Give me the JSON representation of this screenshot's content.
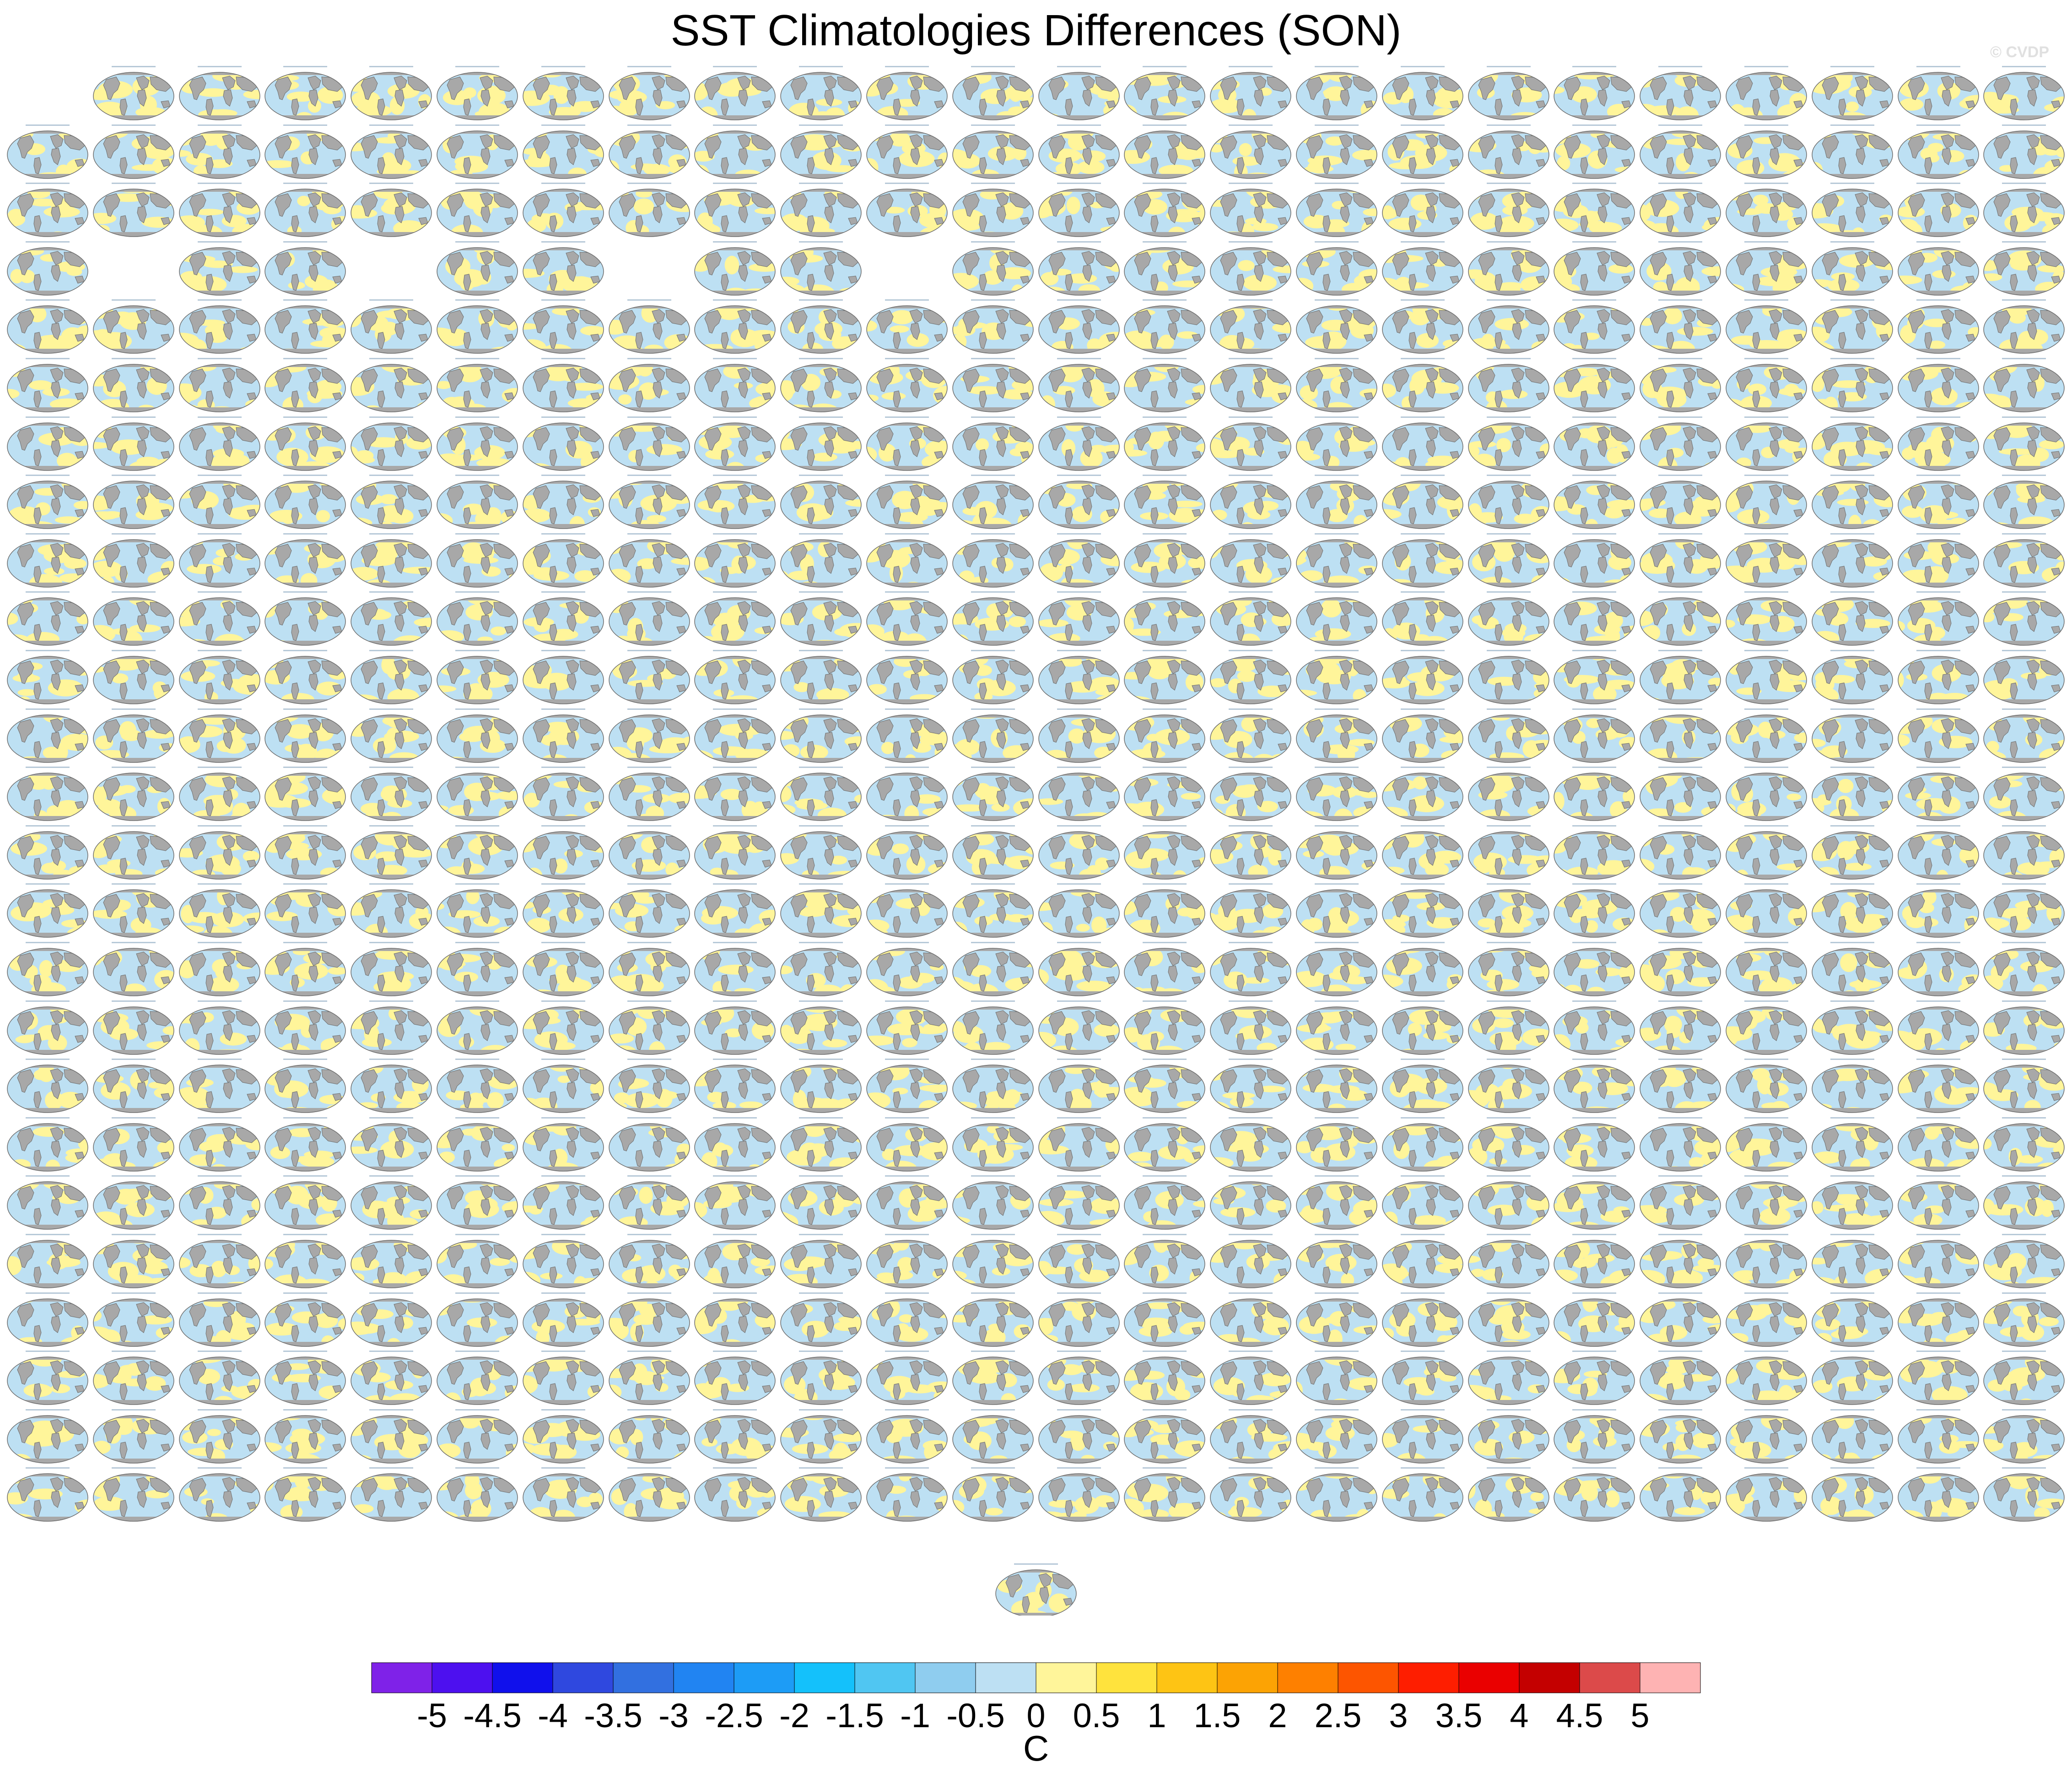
{
  "chart_data": {
    "type": "heatmap",
    "title": "SST Climatologies Differences (SON)",
    "watermark": "© CVDP",
    "grid": {
      "rows": 25,
      "cols": 24
    },
    "blank_cells": [
      [
        0,
        0
      ],
      [
        3,
        1
      ],
      [
        3,
        4
      ],
      [
        3,
        7
      ],
      [
        3,
        10
      ]
    ],
    "extra_panel": {
      "position": "bottom-center"
    },
    "panel_colors": {
      "ocean_warm": "#fff59a",
      "ocean_cool": "#bde0f3",
      "land": "#a8a8a8",
      "border": "#6d6d6d"
    },
    "colorbar": {
      "unit": "C",
      "levels": [
        "-5",
        "-4.5",
        "-4",
        "-3.5",
        "-3",
        "-2.5",
        "-2",
        "-1.5",
        "-1",
        "-0.5",
        "0",
        "0.5",
        "1",
        "1.5",
        "2",
        "2.5",
        "3",
        "3.5",
        "4",
        "4.5",
        "5"
      ],
      "colors": [
        "#7f22e8",
        "#4d10ef",
        "#1010ec",
        "#2f48df",
        "#3270e0",
        "#2184f2",
        "#1d9cf6",
        "#14c1fb",
        "#50c6f2",
        "#8fcdef",
        "#bde0f3",
        "#fff59a",
        "#ffe33d",
        "#fec414",
        "#fca304",
        "#fe8000",
        "#fd5500",
        "#fe1e00",
        "#ea0000",
        "#c40000",
        "#dc4a4a",
        "#feb3b3"
      ]
    }
  }
}
